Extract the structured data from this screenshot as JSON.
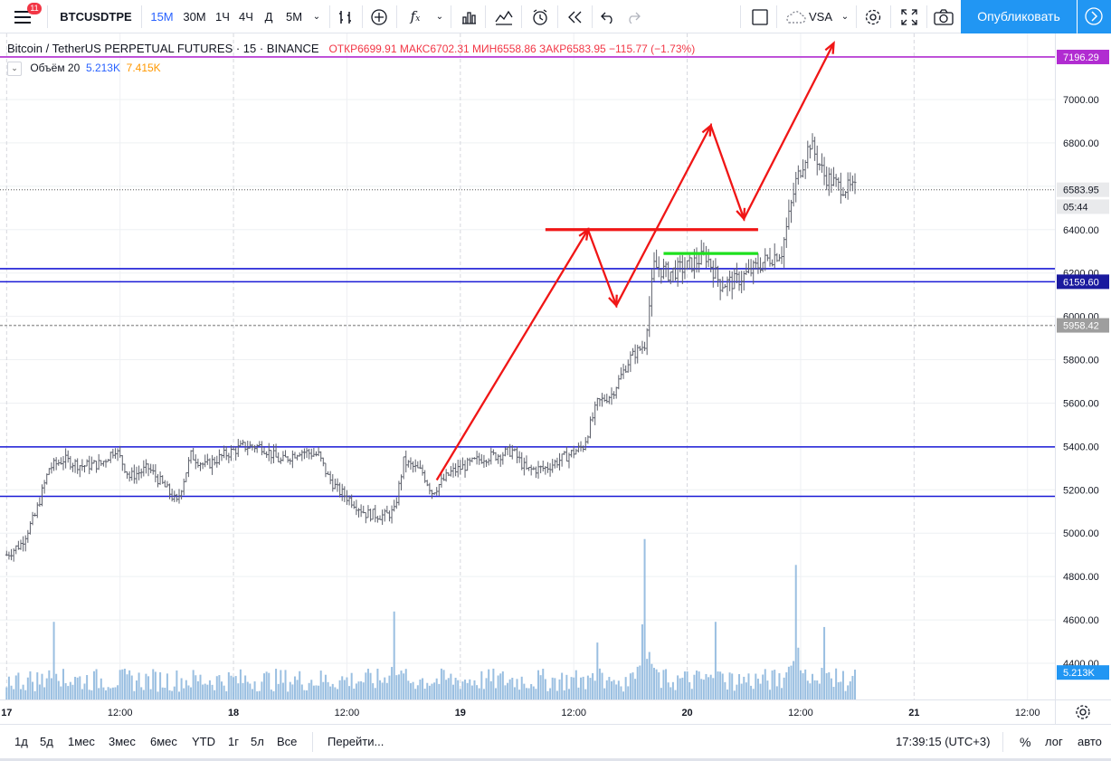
{
  "toolbar": {
    "notification_count": "11",
    "symbol": "BTCUSDTPE",
    "intervals": [
      "15М",
      "30М",
      "1Ч",
      "4Ч",
      "Д",
      "5М"
    ],
    "active_interval": "15М",
    "template_name": "VSA",
    "publish_label": "Опубликовать"
  },
  "legend": {
    "title": "Bitcoin / TetherUS PERPETUAL FUTURES · 15 · BINANCE",
    "ohlc": "ОТКР6699.91 МАКС6702.31 МИН6558.86 ЗАКР6583.95 −115.77 (−1.73%)",
    "volume_label": "Объём 20",
    "volume_value": "5.213K",
    "volume_ma": "7.415K",
    "colors": {
      "volume_value": "#2962ff",
      "volume_ma": "#ff9800"
    }
  },
  "chart_data": {
    "type": "ohlc",
    "symbol": "BTCUSDTPE",
    "exchange": "BINANCE",
    "interval": "15",
    "price_ticks": [
      7000,
      6800,
      6600,
      6400,
      6200,
      6000,
      5800,
      5600,
      5400,
      5200,
      5000,
      4800,
      4600,
      4400
    ],
    "price_tick_labels": [
      "7000.00",
      "6800.00",
      "6600.00",
      "6400.00",
      "6200.00",
      "6000.00",
      "5800.00",
      "5600.00",
      "5400.00",
      "5200.00",
      "5000.00",
      "4800.00",
      "4600.00",
      "4400.00"
    ],
    "ylim": [
      4320,
      7240
    ],
    "time_labels": [
      "17",
      "12:00",
      "18",
      "12:00",
      "19",
      "12:00",
      "20",
      "12:00",
      "21",
      "12:00"
    ],
    "time_positions_hours": [
      0,
      12,
      24,
      36,
      48,
      60,
      72,
      84,
      96,
      108
    ],
    "xlim_hours": [
      -0.7,
      110.9
    ],
    "last_bar_hour": 89.8,
    "price_path": [
      [
        0,
        4900
      ],
      [
        1.5,
        4950
      ],
      [
        3,
        5080
      ],
      [
        4.5,
        5300
      ],
      [
        6,
        5340
      ],
      [
        8,
        5310
      ],
      [
        10,
        5320
      ],
      [
        11.5,
        5390
      ],
      [
        13,
        5260
      ],
      [
        15,
        5300
      ],
      [
        17,
        5200
      ],
      [
        18,
        5140
      ],
      [
        19.5,
        5360
      ],
      [
        21,
        5310
      ],
      [
        23,
        5360
      ],
      [
        25,
        5400
      ],
      [
        27,
        5400
      ],
      [
        29,
        5330
      ],
      [
        31,
        5380
      ],
      [
        33,
        5360
      ],
      [
        34,
        5260
      ],
      [
        35,
        5200
      ],
      [
        36.5,
        5150
      ],
      [
        38,
        5090
      ],
      [
        40,
        5080
      ],
      [
        41,
        5100
      ],
      [
        42,
        5330
      ],
      [
        44,
        5280
      ],
      [
        45,
        5190
      ],
      [
        47,
        5280
      ],
      [
        49,
        5320
      ],
      [
        50.5,
        5350
      ],
      [
        52,
        5360
      ],
      [
        53.5,
        5380
      ],
      [
        55,
        5290
      ],
      [
        57,
        5300
      ],
      [
        59,
        5350
      ],
      [
        61,
        5400
      ],
      [
        62.5,
        5600
      ],
      [
        64,
        5640
      ],
      [
        66,
        5810
      ],
      [
        67.5,
        5870
      ],
      [
        68.5,
        6230
      ],
      [
        70,
        6200
      ],
      [
        72,
        6230
      ],
      [
        74,
        6280
      ],
      [
        75.5,
        6150
      ],
      [
        77,
        6160
      ],
      [
        78.5,
        6200
      ],
      [
        80,
        6250
      ],
      [
        82,
        6300
      ],
      [
        83.5,
        6620
      ],
      [
        85,
        6800
      ],
      [
        86.5,
        6650
      ],
      [
        88,
        6600
      ],
      [
        89.8,
        6583.95
      ]
    ],
    "volume": {
      "label": "Объём 20",
      "last": "5.213K",
      "ma": "7.415K",
      "spikes": [
        [
          5,
          15000
        ],
        [
          41,
          17000
        ],
        [
          67.5,
          31000
        ],
        [
          83.5,
          26000
        ],
        [
          86.5,
          14000
        ],
        [
          75,
          15000
        ],
        [
          62.5,
          11000
        ]
      ]
    },
    "horizontal_lines": [
      {
        "price": 7196.29,
        "color": "#b12cd1",
        "label": "7196.29"
      },
      {
        "price": 6220,
        "color": "#1a1ad6"
      },
      {
        "price": 6159.6,
        "color": "#1a1ad6",
        "label": "6159.60"
      },
      {
        "price": 5398,
        "color": "#1a1ad6"
      },
      {
        "price": 5170,
        "color": "#1a1ad6"
      },
      {
        "price": 5958.42,
        "color": "#9e9e9e",
        "dashed": true,
        "label": "5958.42"
      }
    ],
    "last_price_label": "6583.95",
    "countdown_label": "05:44",
    "volume_scale_label": "5.213K",
    "annotations": {
      "zigzag_arrow": [
        [
          45.5,
          5245
        ],
        [
          61.5,
          6400
        ],
        [
          64.5,
          6050
        ],
        [
          74.5,
          6880
        ],
        [
          78,
          6450
        ],
        [
          87.5,
          7260
        ]
      ],
      "red_level": {
        "price": 6400,
        "from": 57,
        "to": 79.5,
        "color": "#f01616"
      },
      "green_level": {
        "price": 6290,
        "from": 69.5,
        "to": 79.5,
        "color": "#1ee01e"
      }
    }
  },
  "bottom": {
    "ranges": [
      "1д",
      "5д",
      "1мес",
      "3мес",
      "6мес",
      "YTD",
      "1г",
      "5л",
      "Все"
    ],
    "goto_label": "Перейти...",
    "clock": "17:39:15 (UTC+3)",
    "percent_label": "%",
    "log_label": "лог",
    "auto_label": "авто"
  }
}
